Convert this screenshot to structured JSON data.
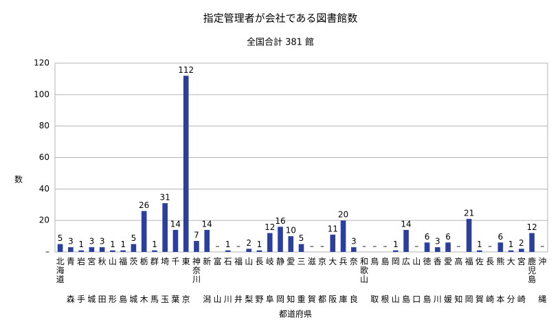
{
  "chart_data": {
    "type": "bar",
    "title": "指定管理者が会社である図書館数",
    "subtitle": "全国合計 381 館",
    "x_label": "都道府県",
    "y_label": "数",
    "categories": [
      "北海道",
      "青森",
      "岩手",
      "宮城",
      "秋田",
      "山形",
      "福島",
      "茨城",
      "栃木",
      "群馬",
      "埼玉",
      "千葉",
      "東京",
      "神奈川",
      "新潟",
      "富山",
      "石川",
      "福井",
      "山梨",
      "長野",
      "岐阜",
      "静岡",
      "愛知",
      "三重",
      "滋賀",
      "京都",
      "大阪",
      "兵庫",
      "奈良",
      "和歌山",
      "鳥取",
      "島根",
      "岡山",
      "広島",
      "山口",
      "徳島",
      "香川",
      "愛媛",
      "高知",
      "福岡",
      "佐賀",
      "長崎",
      "熊本",
      "大分",
      "宮崎",
      "鹿児島",
      "沖縄"
    ],
    "values": [
      5,
      3,
      1,
      3,
      3,
      1,
      1,
      5,
      26,
      1,
      31,
      14,
      112,
      7,
      14,
      0,
      1,
      0,
      2,
      1,
      12,
      16,
      10,
      5,
      0,
      0,
      11,
      20,
      3,
      0,
      0,
      0,
      1,
      14,
      0,
      6,
      3,
      6,
      0,
      21,
      1,
      0,
      6,
      1,
      2,
      12,
      0
    ],
    "value_labels": [
      "5",
      "3",
      "1",
      "3",
      "3",
      "1",
      "1",
      "5",
      "26",
      "1",
      "31",
      "14",
      "112",
      "7",
      "14",
      "–",
      "1",
      "–",
      "2",
      "1",
      "12",
      "16",
      "10",
      "5",
      "–",
      "–",
      "11",
      "20",
      "3",
      "–",
      "–",
      "–",
      "1",
      "14",
      "–",
      "6",
      "3",
      "6",
      "–",
      "21",
      "1",
      "–",
      "6",
      "1",
      "2",
      "12",
      "–"
    ],
    "color": "#2b3f9e",
    "ylim": [
      0,
      120
    ],
    "yticks": [
      {
        "value": 0,
        "label": "–"
      },
      20,
      40,
      60,
      80,
      100,
      120
    ],
    "grid": true
  }
}
